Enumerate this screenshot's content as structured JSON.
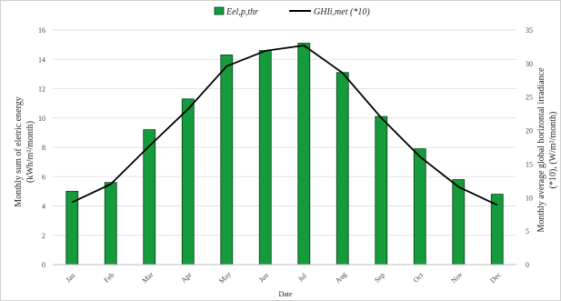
{
  "chart_data": {
    "type": "bar",
    "categories": [
      "Jan",
      "Feb",
      "Mar",
      "Apr",
      "May",
      "Jun",
      "Jul",
      "Aug",
      "Sep",
      "Oct",
      "Nov",
      "Dec"
    ],
    "series": [
      {
        "name": "Eel,p,thr",
        "type": "bar",
        "axis": "left",
        "color": "#159a3c",
        "values": [
          5.0,
          5.6,
          9.2,
          11.3,
          14.3,
          14.6,
          15.1,
          13.1,
          10.1,
          7.9,
          5.8,
          4.8
        ]
      },
      {
        "name": "GHIi,met (*10)",
        "type": "line",
        "axis": "right",
        "color": "#000000",
        "values": [
          9.3,
          12.0,
          17.7,
          23.2,
          29.6,
          31.9,
          32.7,
          28.6,
          21.9,
          16.1,
          11.6,
          8.9
        ]
      }
    ],
    "xlabel": "Date",
    "ylabel_left_line1": "Monthly sum of eletric energy",
    "ylabel_left_line2": "(kWh/m²/month)",
    "ylabel_right_line1": "Monthly average global horizontal irradiance",
    "ylabel_right_line2": "(*10), (W/m²/month)",
    "ylim_left": [
      0,
      16
    ],
    "yticks_left": [
      "0",
      "2",
      "4",
      "6",
      "8",
      "10",
      "12",
      "14",
      "16"
    ],
    "ylim_right": [
      0,
      35
    ],
    "yticks_right": [
      "0",
      "5",
      "10",
      "15",
      "20",
      "25",
      "30",
      "35"
    ],
    "grid": true,
    "legend_position": "top-center"
  }
}
